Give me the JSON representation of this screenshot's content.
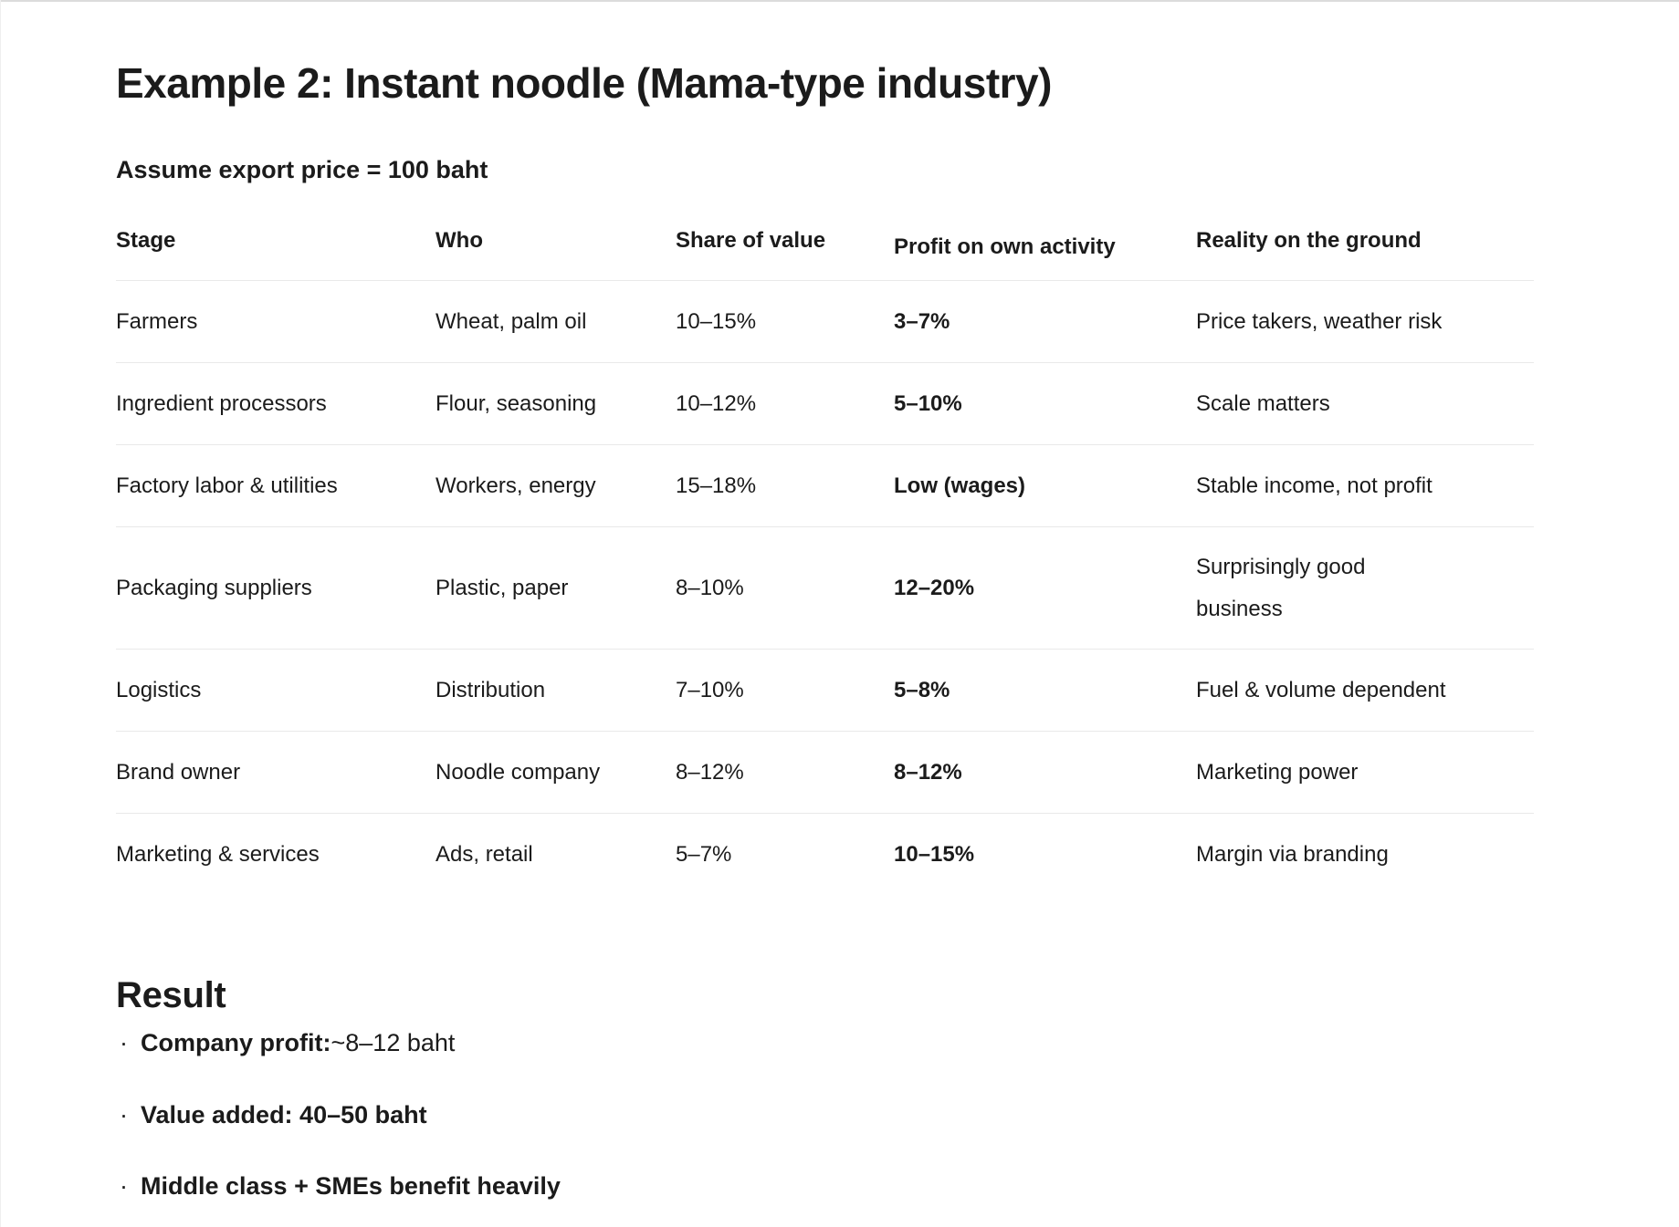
{
  "page": {
    "title": "Example 2: Instant noodle (Mama-type industry)",
    "subtitle": "Assume export price = 100 baht"
  },
  "table": {
    "columns": {
      "stage": "Stage",
      "who": "Who",
      "share": "Share of value",
      "profit": "Profit on own activity",
      "reality": "Reality on the ground"
    },
    "rows": [
      {
        "stage": "Farmers",
        "who": "Wheat, palm oil",
        "share": "10–15%",
        "profit": "3–7%",
        "reality": "Price takers, weather risk"
      },
      {
        "stage": "Ingredient processors",
        "who": "Flour, seasoning",
        "share": "10–12%",
        "profit": "5–10%",
        "reality": "Scale matters"
      },
      {
        "stage": "Factory labor & utilities",
        "who": "Workers, energy",
        "share": "15–18%",
        "profit": "Low (wages)",
        "reality": "Stable income, not profit"
      },
      {
        "stage": "Packaging suppliers",
        "who": "Plastic, paper",
        "share": "8–10%",
        "profit": "12–20%",
        "reality": "Surprisingly good\nbusiness"
      },
      {
        "stage": "Logistics",
        "who": "Distribution",
        "share": "7–10%",
        "profit": "5–8%",
        "reality": "Fuel & volume dependent"
      },
      {
        "stage": "Brand owner",
        "who": "Noodle company",
        "share": "8–12%",
        "profit": "8–12%",
        "reality": "Marketing power"
      },
      {
        "stage": "Marketing & services",
        "who": "Ads, retail",
        "share": "5–7%",
        "profit": "10–15%",
        "reality": "Margin via branding"
      }
    ]
  },
  "result": {
    "heading": "Result",
    "bullet_glyph": "·",
    "bullets": [
      {
        "bold": "Company profit:",
        "rest": " ~8–12 baht"
      },
      {
        "bold": "Value added: 40–50 baht",
        "rest": ""
      },
      {
        "bold": "Middle class + SMEs benefit heavily",
        "rest": ""
      }
    ]
  },
  "colors": {
    "background": "#ffffff",
    "text": "#1b1b1b",
    "divider": "#e9e9e9",
    "top_edge": "#dcdcdc"
  }
}
